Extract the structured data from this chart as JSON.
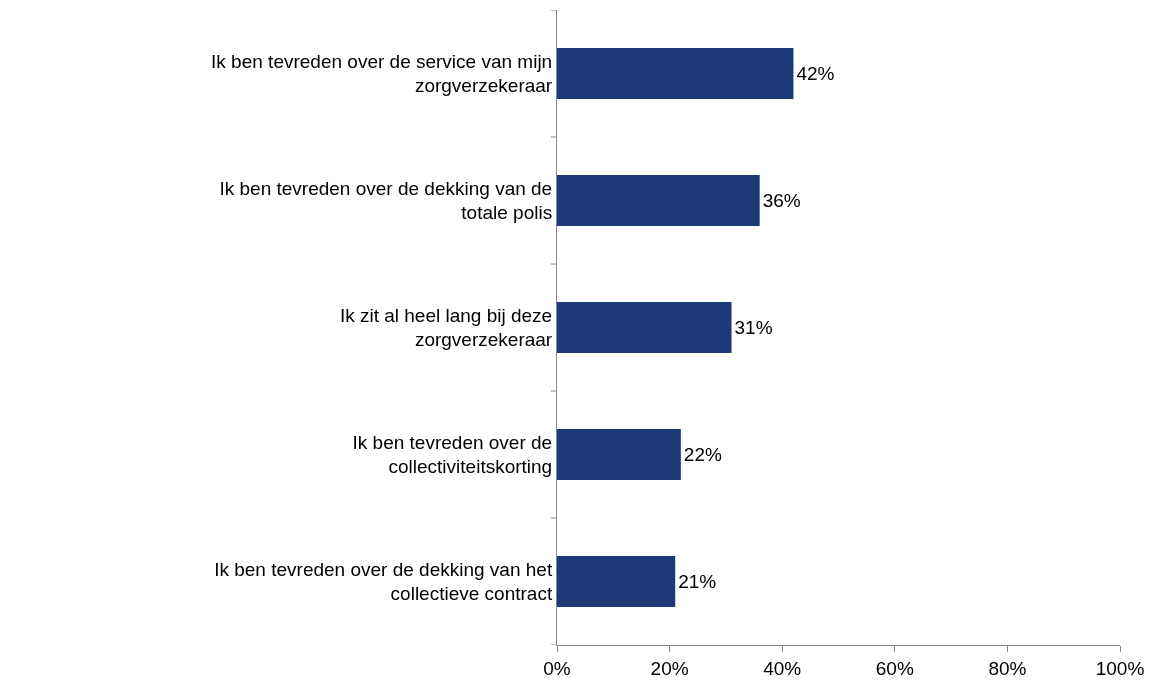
{
  "chart_data": {
    "type": "bar",
    "orientation": "horizontal",
    "categories": [
      "Ik ben tevreden over de service van mijn zorgverzekeraar",
      "Ik ben tevreden over de dekking van de totale polis",
      "Ik zit al heel lang bij deze zorgverzekeraar",
      "Ik ben tevreden over de collectiviteitskorting",
      "Ik ben tevreden over de dekking van het collectieve contract"
    ],
    "values": [
      42,
      36,
      31,
      22,
      21
    ],
    "value_labels": [
      "42%",
      "36%",
      "31%",
      "22%",
      "21%"
    ],
    "color": "#1c3a78",
    "xlim": [
      0,
      100
    ],
    "xticks": [
      {
        "value": 0,
        "label": "0%"
      },
      {
        "value": 20,
        "label": "20%"
      },
      {
        "value": 40,
        "label": "40%"
      },
      {
        "value": 60,
        "label": "60%"
      },
      {
        "value": 80,
        "label": "80%"
      },
      {
        "value": 100,
        "label": "100%"
      }
    ],
    "grid": false,
    "legend": false
  }
}
